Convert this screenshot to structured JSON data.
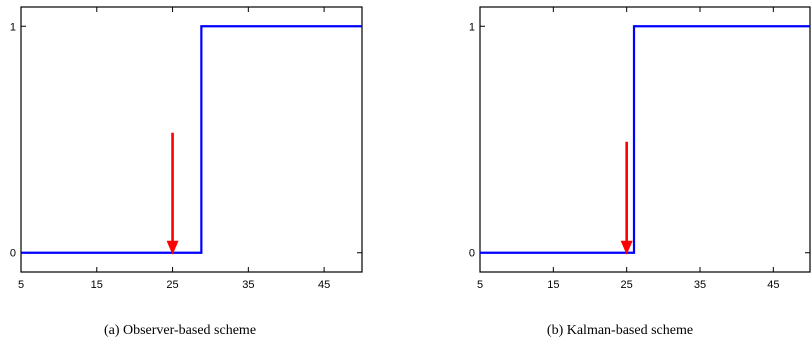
{
  "chart_data": [
    {
      "type": "line",
      "caption": "(a) Observer-based scheme",
      "xlim": [
        5,
        50
      ],
      "ylim": [
        0,
        1
      ],
      "xticks": [
        5,
        15,
        25,
        35,
        45
      ],
      "yticks": [
        0,
        1
      ],
      "grid": false,
      "series": [
        {
          "color": "#0000ff",
          "x": [
            5,
            28.8,
            28.8,
            29.2,
            29.2,
            50
          ],
          "y": [
            0,
            0,
            1,
            1,
            1,
            1
          ]
        }
      ],
      "annotations": [
        {
          "type": "arrow",
          "color": "#ff0000",
          "x": 25,
          "y_from": 0.53,
          "y_to": 0
        }
      ]
    },
    {
      "type": "line",
      "caption": "(b) Kalman-based scheme",
      "xlim": [
        5,
        50
      ],
      "ylim": [
        0,
        1
      ],
      "xticks": [
        5,
        15,
        25,
        35,
        45
      ],
      "yticks": [
        0,
        1
      ],
      "grid": false,
      "series": [
        {
          "color": "#0000ff",
          "x": [
            5,
            26,
            26,
            50
          ],
          "y": [
            0,
            0,
            1,
            1
          ]
        }
      ],
      "annotations": [
        {
          "type": "arrow",
          "color": "#ff0000",
          "x": 25,
          "y_from": 0.49,
          "y_to": 0
        }
      ]
    }
  ]
}
